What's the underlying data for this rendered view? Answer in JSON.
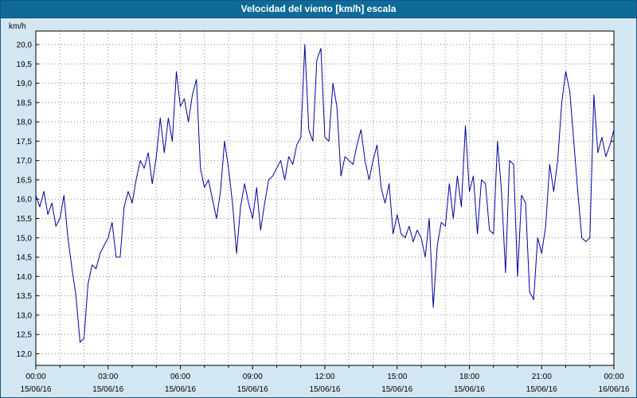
{
  "window": {
    "title": "Velocidad del viento [km/h] escala"
  },
  "colors": {
    "titlebar_bg": "#0e6b99",
    "titlebar_text": "#ffffff",
    "page_bg": "#d2e7f2",
    "plot_bg": "#ffffff",
    "grid": "#8a8a8a",
    "axis": "#000000",
    "line": "#00009c"
  },
  "chart_data": {
    "type": "line",
    "title": "Velocidad del viento [km/h] escala",
    "ylabel": "km/h",
    "xlabel": "",
    "ylim": [
      12.0,
      20.0
    ],
    "y_tick_step": 0.5,
    "y_ticks": [
      "12,0",
      "12,5",
      "13,0",
      "13,5",
      "14,0",
      "14,5",
      "15,0",
      "15,5",
      "16,0",
      "16,5",
      "17,0",
      "17,5",
      "18,0",
      "18,5",
      "19,0",
      "19,5",
      "20,0"
    ],
    "x_range_hours": [
      0,
      24
    ],
    "x_tick_interval_hours": 3,
    "x_grid_interval_hours": 1,
    "grid": true,
    "legend_position": "none",
    "x_ticks": [
      {
        "time": "00:00",
        "date": "15/06/16"
      },
      {
        "time": "03:00",
        "date": "15/06/16"
      },
      {
        "time": "06:00",
        "date": "15/06/16"
      },
      {
        "time": "09:00",
        "date": "15/06/16"
      },
      {
        "time": "12:00",
        "date": "15/06/16"
      },
      {
        "time": "15:00",
        "date": "15/06/16"
      },
      {
        "time": "18:00",
        "date": "15/06/16"
      },
      {
        "time": "21:00",
        "date": "15/06/16"
      },
      {
        "time": "00:00",
        "date": "16/06/16"
      }
    ],
    "series": [
      {
        "name": "Velocidad del viento",
        "unit": "km/h",
        "start": "00:00",
        "interval_minutes": 10,
        "values": [
          16.1,
          15.8,
          16.2,
          15.6,
          15.9,
          15.3,
          15.5,
          16.1,
          15.0,
          14.2,
          13.5,
          12.3,
          12.4,
          13.8,
          14.3,
          14.2,
          14.6,
          14.8,
          15.0,
          15.4,
          14.5,
          14.5,
          15.8,
          16.2,
          15.9,
          16.5,
          17.0,
          16.8,
          17.2,
          16.4,
          17.1,
          18.1,
          17.2,
          18.1,
          17.5,
          19.3,
          18.4,
          18.6,
          18.0,
          18.7,
          19.1,
          16.8,
          16.3,
          16.5,
          16.0,
          15.5,
          16.2,
          17.5,
          16.8,
          15.9,
          14.6,
          15.8,
          16.4,
          15.9,
          15.5,
          16.3,
          15.2,
          15.9,
          16.5,
          16.6,
          16.8,
          17.0,
          16.5,
          17.1,
          16.9,
          17.4,
          17.6,
          20.0,
          17.8,
          17.5,
          19.6,
          19.9,
          17.6,
          17.5,
          19.0,
          18.4,
          16.6,
          17.1,
          17.0,
          16.9,
          17.4,
          17.8,
          17.0,
          16.5,
          17.0,
          17.4,
          16.3,
          15.9,
          16.4,
          15.1,
          15.6,
          15.1,
          15.0,
          15.3,
          14.9,
          15.2,
          15.0,
          14.5,
          15.5,
          13.2,
          14.8,
          15.4,
          15.3,
          16.4,
          15.5,
          16.6,
          15.8,
          17.9,
          16.2,
          16.6,
          15.1,
          16.5,
          16.4,
          15.2,
          15.1,
          17.5,
          16.2,
          14.1,
          17.0,
          16.9,
          14.0,
          16.1,
          15.9,
          13.6,
          13.4,
          15.0,
          14.6,
          15.3,
          16.9,
          16.2,
          17.0,
          18.5,
          19.3,
          18.8,
          17.5,
          16.2,
          15.0,
          14.9,
          15.0,
          18.7,
          17.2,
          17.6,
          17.1,
          17.4,
          17.8
        ]
      }
    ]
  }
}
